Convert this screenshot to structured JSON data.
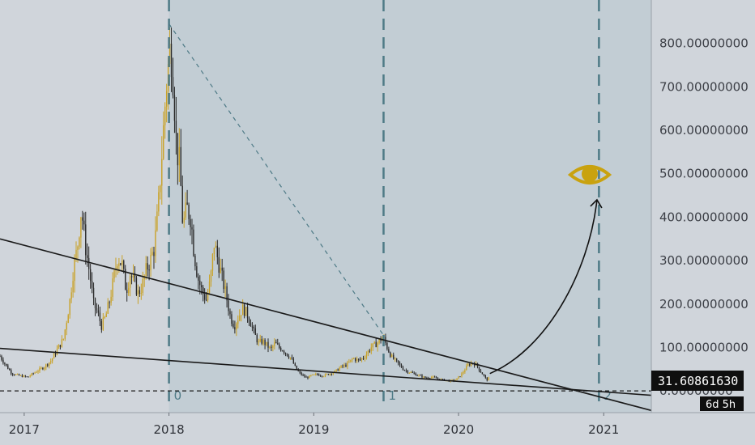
{
  "chart_data": {
    "type": "candlestick",
    "x_ticks": [
      "2017",
      "2018",
      "2019",
      "2020",
      "2021"
    ],
    "y_ticks": [
      "0.00000000",
      "100.00000000",
      "200.00000000",
      "300.00000000",
      "400.00000000",
      "500.00000000",
      "600.00000000",
      "700.00000000",
      "800.00000000"
    ],
    "y_range": [
      -50,
      900
    ],
    "x_range": [
      "2016-11-01",
      "2021-05-01"
    ],
    "current_price_label": "31.60861630",
    "countdown_label": "6d 5h",
    "current_price": 31.6,
    "fib_time_labels": [
      "0",
      "1",
      "2"
    ],
    "fib_time_dates": [
      "2018-01-01",
      "2019-06-26",
      "2020-12-20"
    ],
    "fib_anchor": {
      "start_date": "2018-01-01",
      "start_value": 845,
      "end_date": "2019-06-26",
      "end_value": 128
    },
    "trendlines": [
      {
        "name": "upper",
        "p1": {
          "date": "2016-11-01",
          "value": 350
        },
        "p2": {
          "date": "2021-05-01",
          "value": -45
        }
      },
      {
        "name": "lower",
        "p1": {
          "date": "2016-11-01",
          "value": 98
        },
        "p2": {
          "date": "2021-05-01",
          "value": -10
        }
      }
    ],
    "zero_line_dashed": true,
    "projection_arrow": {
      "from": {
        "date": "2020-03-20",
        "value": 40
      },
      "to": {
        "date": "2020-12-15",
        "value": 440
      }
    },
    "series": [
      {
        "date": "2016-11-01",
        "value": 80
      },
      {
        "date": "2016-11-15",
        "value": 60
      },
      {
        "date": "2016-12-01",
        "value": 40
      },
      {
        "date": "2016-12-20",
        "value": 35
      },
      {
        "date": "2017-01-10",
        "value": 32
      },
      {
        "date": "2017-02-01",
        "value": 45
      },
      {
        "date": "2017-02-20",
        "value": 55
      },
      {
        "date": "2017-03-10",
        "value": 70
      },
      {
        "date": "2017-03-25",
        "value": 95
      },
      {
        "date": "2017-04-10",
        "value": 120
      },
      {
        "date": "2017-04-25",
        "value": 200
      },
      {
        "date": "2017-05-05",
        "value": 280
      },
      {
        "date": "2017-05-15",
        "value": 330
      },
      {
        "date": "2017-05-25",
        "value": 420
      },
      {
        "date": "2017-06-05",
        "value": 330
      },
      {
        "date": "2017-06-15",
        "value": 270
      },
      {
        "date": "2017-06-25",
        "value": 200
      },
      {
        "date": "2017-07-05",
        "value": 180
      },
      {
        "date": "2017-07-15",
        "value": 150
      },
      {
        "date": "2017-07-25",
        "value": 170
      },
      {
        "date": "2017-08-05",
        "value": 210
      },
      {
        "date": "2017-08-15",
        "value": 260
      },
      {
        "date": "2017-08-25",
        "value": 310
      },
      {
        "date": "2017-09-05",
        "value": 290
      },
      {
        "date": "2017-09-15",
        "value": 230
      },
      {
        "date": "2017-09-25",
        "value": 270
      },
      {
        "date": "2017-10-05",
        "value": 250
      },
      {
        "date": "2017-10-15",
        "value": 225
      },
      {
        "date": "2017-10-25",
        "value": 240
      },
      {
        "date": "2017-11-05",
        "value": 280
      },
      {
        "date": "2017-11-15",
        "value": 300
      },
      {
        "date": "2017-11-25",
        "value": 330
      },
      {
        "date": "2017-12-05",
        "value": 420
      },
      {
        "date": "2017-12-15",
        "value": 560
      },
      {
        "date": "2017-12-25",
        "value": 700
      },
      {
        "date": "2018-01-05",
        "value": 800
      },
      {
        "date": "2018-01-12",
        "value": 720
      },
      {
        "date": "2018-01-20",
        "value": 560
      },
      {
        "date": "2018-01-28",
        "value": 520
      },
      {
        "date": "2018-02-05",
        "value": 380
      },
      {
        "date": "2018-02-15",
        "value": 420
      },
      {
        "date": "2018-02-25",
        "value": 400
      },
      {
        "date": "2018-03-05",
        "value": 320
      },
      {
        "date": "2018-03-15",
        "value": 260
      },
      {
        "date": "2018-03-25",
        "value": 230
      },
      {
        "date": "2018-04-05",
        "value": 210
      },
      {
        "date": "2018-04-15",
        "value": 250
      },
      {
        "date": "2018-04-25",
        "value": 340
      },
      {
        "date": "2018-05-05",
        "value": 300
      },
      {
        "date": "2018-05-15",
        "value": 260
      },
      {
        "date": "2018-05-25",
        "value": 220
      },
      {
        "date": "2018-06-05",
        "value": 170
      },
      {
        "date": "2018-06-15",
        "value": 150
      },
      {
        "date": "2018-06-25",
        "value": 170
      },
      {
        "date": "2018-07-05",
        "value": 190
      },
      {
        "date": "2018-07-15",
        "value": 180
      },
      {
        "date": "2018-07-25",
        "value": 160
      },
      {
        "date": "2018-08-05",
        "value": 130
      },
      {
        "date": "2018-08-15",
        "value": 110
      },
      {
        "date": "2018-08-25",
        "value": 115
      },
      {
        "date": "2018-09-05",
        "value": 105
      },
      {
        "date": "2018-09-15",
        "value": 95
      },
      {
        "date": "2018-09-25",
        "value": 110
      },
      {
        "date": "2018-10-05",
        "value": 100
      },
      {
        "date": "2018-10-15",
        "value": 95
      },
      {
        "date": "2018-10-25",
        "value": 85
      },
      {
        "date": "2018-11-05",
        "value": 75
      },
      {
        "date": "2018-11-15",
        "value": 55
      },
      {
        "date": "2018-11-25",
        "value": 42
      },
      {
        "date": "2018-12-05",
        "value": 35
      },
      {
        "date": "2018-12-15",
        "value": 30
      },
      {
        "date": "2018-12-25",
        "value": 35
      },
      {
        "date": "2019-01-10",
        "value": 38
      },
      {
        "date": "2019-01-25",
        "value": 35
      },
      {
        "date": "2019-02-10",
        "value": 40
      },
      {
        "date": "2019-02-25",
        "value": 45
      },
      {
        "date": "2019-03-10",
        "value": 55
      },
      {
        "date": "2019-03-25",
        "value": 60
      },
      {
        "date": "2019-04-10",
        "value": 75
      },
      {
        "date": "2019-04-25",
        "value": 70
      },
      {
        "date": "2019-05-10",
        "value": 80
      },
      {
        "date": "2019-05-25",
        "value": 100
      },
      {
        "date": "2019-06-10",
        "value": 110
      },
      {
        "date": "2019-06-25",
        "value": 125
      },
      {
        "date": "2019-07-05",
        "value": 100
      },
      {
        "date": "2019-07-15",
        "value": 80
      },
      {
        "date": "2019-07-25",
        "value": 70
      },
      {
        "date": "2019-08-05",
        "value": 60
      },
      {
        "date": "2019-08-15",
        "value": 50
      },
      {
        "date": "2019-08-25",
        "value": 45
      },
      {
        "date": "2019-09-10",
        "value": 40
      },
      {
        "date": "2019-09-25",
        "value": 35
      },
      {
        "date": "2019-10-10",
        "value": 30
      },
      {
        "date": "2019-10-25",
        "value": 32
      },
      {
        "date": "2019-11-10",
        "value": 28
      },
      {
        "date": "2019-11-25",
        "value": 25
      },
      {
        "date": "2019-12-10",
        "value": 23
      },
      {
        "date": "2019-12-25",
        "value": 25
      },
      {
        "date": "2020-01-10",
        "value": 40
      },
      {
        "date": "2020-01-25",
        "value": 60
      },
      {
        "date": "2020-02-05",
        "value": 65
      },
      {
        "date": "2020-02-15",
        "value": 60
      },
      {
        "date": "2020-02-25",
        "value": 45
      },
      {
        "date": "2020-03-05",
        "value": 35
      },
      {
        "date": "2020-03-12",
        "value": 25
      },
      {
        "date": "2020-03-20",
        "value": 31.6
      }
    ],
    "colors": {
      "background": "#d0d5db",
      "shade": "#c2cdd4",
      "candle_up": "#c9a227",
      "candle_down": "#2a2a2a",
      "fib_line": "#4e7a86",
      "eye": "#c9a20f",
      "label_bg": "#0f0f0f"
    }
  }
}
